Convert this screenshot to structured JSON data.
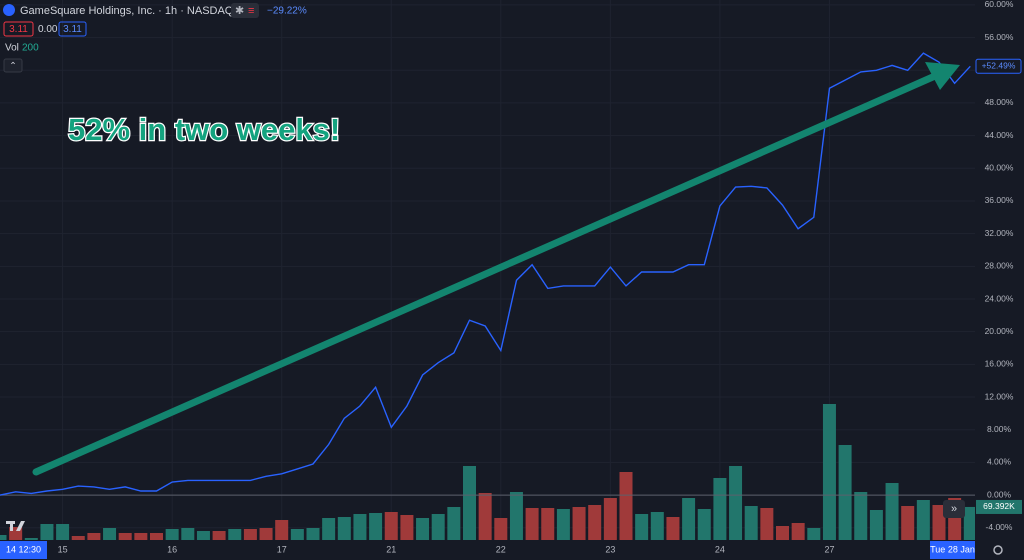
{
  "chart_data": {
    "type": "line",
    "title": "GameSquare Holdings, Inc. · 1h · NASDAQ",
    "change": "−29.22%",
    "price_boxes": [
      "3.11",
      "0.00",
      "3.11"
    ],
    "volume_label": "Vol",
    "volume_setting": "200",
    "annotation": "52% in two weeks!",
    "crosshair_labels": [
      "14 12:30",
      "Tue 28 Jan"
    ],
    "categories": [
      null,
      null,
      null,
      null,
      "15",
      null,
      null,
      null,
      null,
      null,
      null,
      "16",
      null,
      null,
      null,
      null,
      null,
      null,
      "17",
      null,
      null,
      null,
      null,
      null,
      null,
      "21",
      null,
      null,
      null,
      null,
      null,
      null,
      "22",
      null,
      null,
      null,
      null,
      null,
      null,
      "23",
      null,
      null,
      null,
      null,
      null,
      null,
      "24",
      null,
      null,
      null,
      null,
      null,
      null,
      "27",
      null,
      null,
      null,
      null,
      null,
      null,
      null,
      null,
      null
    ],
    "series": [
      {
        "color": "#2962ff",
        "last_label": "+52.49%",
        "values": [
          0,
          0.4,
          0.2,
          0.5,
          0.7,
          1.1,
          1.0,
          0.7,
          1.0,
          0.5,
          0.5,
          1.6,
          1.8,
          1.8,
          1.8,
          1.8,
          1.8,
          2.3,
          2.6,
          3.2,
          3.8,
          6.2,
          9.4,
          10.9,
          13.2,
          8.3,
          10.9,
          14.7,
          16.2,
          17.4,
          21.4,
          20.7,
          17.7,
          26.3,
          28.2,
          25.3,
          25.6,
          25.6,
          25.6,
          27.9,
          25.6,
          27.3,
          27.3,
          27.3,
          28.2,
          28.2,
          35.4,
          37.7,
          37.8,
          37.6,
          35.5,
          32.6,
          34.0,
          49.8,
          50.8,
          51.8,
          52.0,
          52.6,
          52.0,
          54.1,
          53.0,
          50.4,
          52.49
        ]
      }
    ],
    "volume": {
      "last_label": "69.392K",
      "values": [
        10.5,
        27.3,
        4.2,
        33.6,
        33.6,
        8.4,
        14.7,
        25.2,
        14.7,
        14.7,
        14.7,
        23.1,
        25.2,
        18.9,
        18.9,
        23.1,
        23.1,
        25.2,
        42,
        23.1,
        25.2,
        46.2,
        48.3,
        54.6,
        56.7,
        58.8,
        52.5,
        46.2,
        54.6,
        69.3,
        155.4,
        98.7,
        46.2,
        100.8,
        67.2,
        67.2,
        65.1,
        69.3,
        73.5,
        88.2,
        142.8,
        54.6,
        58.8,
        48.3,
        88.2,
        65.1,
        130.2,
        155.4,
        71.4,
        67.2,
        29.4,
        35.7,
        25.2,
        285.6,
        199.5,
        100.8,
        63,
        119.7,
        71.4,
        84,
        73.5,
        88.2,
        69.392
      ],
      "colors": [
        "#22766c",
        "#a03a3a",
        "#22766c",
        "#22766c",
        "#22766c",
        "#a03a3a",
        "#a03a3a",
        "#22766c",
        "#a03a3a",
        "#a03a3a",
        "#a03a3a",
        "#22766c",
        "#22766c",
        "#22766c",
        "#a03a3a",
        "#22766c",
        "#a03a3a",
        "#a03a3a",
        "#a03a3a",
        "#22766c",
        "#22766c",
        "#22766c",
        "#22766c",
        "#22766c",
        "#22766c",
        "#a03a3a",
        "#a03a3a",
        "#22766c",
        "#22766c",
        "#22766c",
        "#22766c",
        "#a03a3a",
        "#a03a3a",
        "#22766c",
        "#a03a3a",
        "#a03a3a",
        "#22766c",
        "#a03a3a",
        "#a03a3a",
        "#a03a3a",
        "#a03a3a",
        "#22766c",
        "#22766c",
        "#a03a3a",
        "#22766c",
        "#22766c",
        "#22766c",
        "#22766c",
        "#22766c",
        "#a03a3a",
        "#a03a3a",
        "#a03a3a",
        "#22766c",
        "#22766c",
        "#22766c",
        "#22766c",
        "#22766c",
        "#22766c",
        "#a03a3a",
        "#22766c",
        "#a03a3a",
        "#a03a3a",
        "#22766c"
      ]
    },
    "ylim": [
      -5.5,
      60.6
    ],
    "yticks": [
      {
        "value": 60,
        "label": "60.00%"
      },
      {
        "value": 56,
        "label": "56.00%"
      },
      {
        "value": 52,
        "label": "52.00%"
      },
      {
        "value": 48,
        "label": "48.00%"
      },
      {
        "value": 44,
        "label": "44.00%"
      },
      {
        "value": 40,
        "label": "40.00%"
      },
      {
        "value": 36,
        "label": "36.00%"
      },
      {
        "value": 32,
        "label": "32.00%"
      },
      {
        "value": 28,
        "label": "28.00%"
      },
      {
        "value": 24,
        "label": "24.00%"
      },
      {
        "value": 20,
        "label": "20.00%"
      },
      {
        "value": 16,
        "label": "16.00%"
      },
      {
        "value": 12,
        "label": "12.00%"
      },
      {
        "value": 8,
        "label": "8.00%"
      },
      {
        "value": 4,
        "label": "4.00%"
      },
      {
        "value": 0,
        "label": "0.00%"
      },
      {
        "value": -4,
        "label": "-4.00%"
      }
    ],
    "grid": true
  }
}
